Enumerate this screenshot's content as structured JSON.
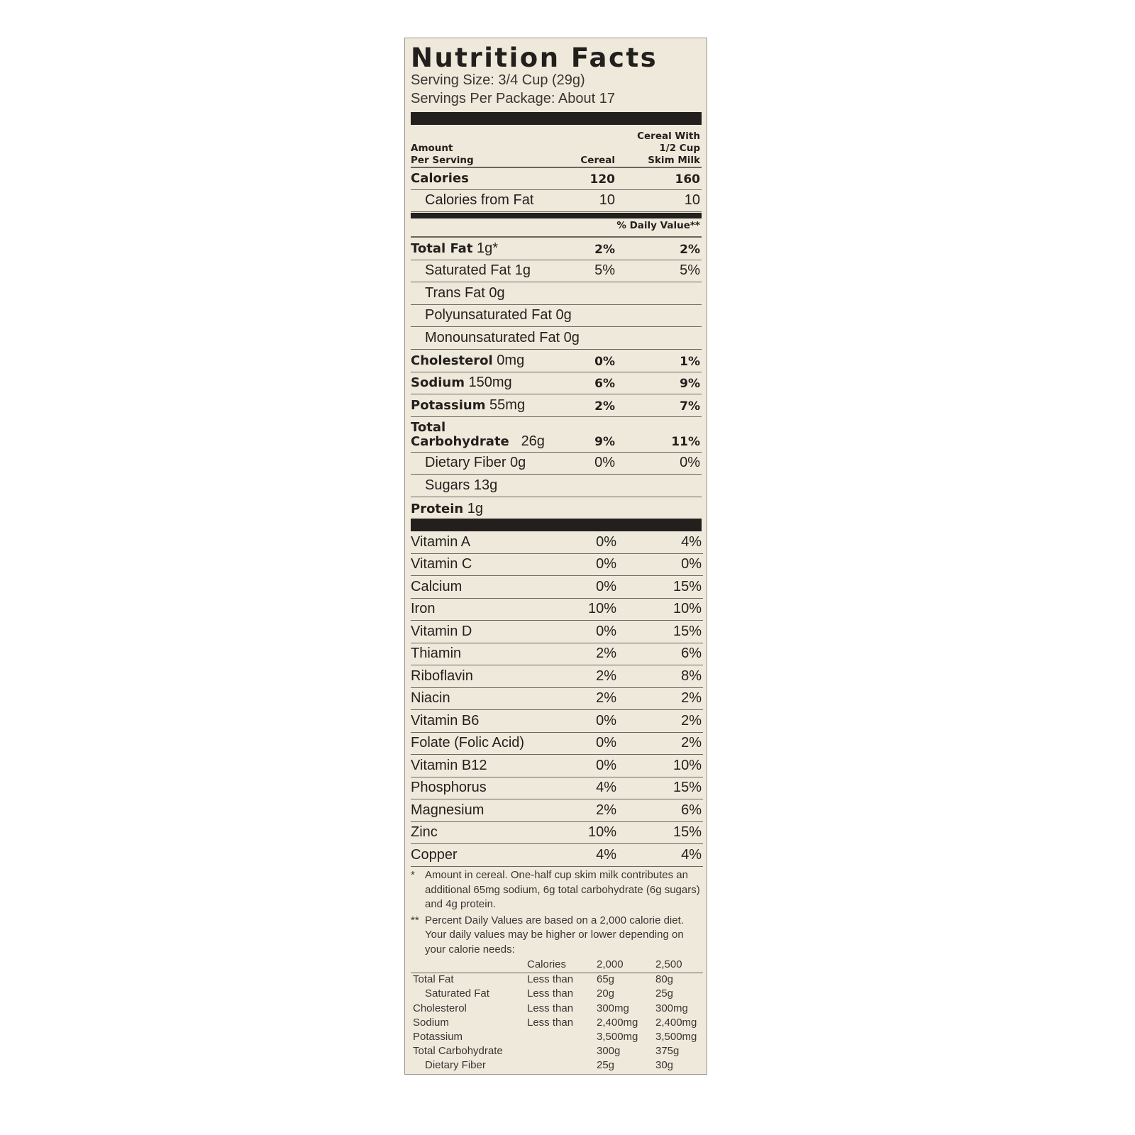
{
  "title": "Nutrition Facts",
  "serving_size": "Serving Size: 3/4 Cup (29g)",
  "servings_per_package": "Servings Per Package: About 17",
  "header": {
    "amount_line1": "Amount",
    "amount_line2": "Per Serving",
    "col1": "Cereal",
    "col2_line1": "Cereal With",
    "col2_line2": "1/2 Cup",
    "col2_line3": "Skim Milk"
  },
  "calories": [
    {
      "label": "Calories",
      "cereal": "120",
      "with_milk": "160",
      "bold": true,
      "indent": false
    },
    {
      "label": "Calories from Fat",
      "cereal": "10",
      "with_milk": "10",
      "bold": false,
      "indent": true
    }
  ],
  "daily_value_header": "% Daily Value**",
  "nutrients": [
    {
      "name": "Total Fat",
      "amount": "1g*",
      "cereal": "2%",
      "with_milk": "2%",
      "bold": true,
      "indent": false
    },
    {
      "name": "Saturated Fat 1g",
      "amount": "",
      "cereal": "5%",
      "with_milk": "5%",
      "bold": false,
      "indent": true
    },
    {
      "name": "Trans Fat 0g",
      "amount": "",
      "cereal": "",
      "with_milk": "",
      "bold": false,
      "indent": true
    },
    {
      "name": "Polyunsaturated Fat 0g",
      "amount": "",
      "cereal": "",
      "with_milk": "",
      "bold": false,
      "indent": true
    },
    {
      "name": "Monounsaturated Fat 0g",
      "amount": "",
      "cereal": "",
      "with_milk": "",
      "bold": false,
      "indent": true
    },
    {
      "name": "Cholesterol",
      "amount": "0mg",
      "cereal": "0%",
      "with_milk": "1%",
      "bold": true,
      "indent": false
    },
    {
      "name": "Sodium",
      "amount": "150mg",
      "cereal": "6%",
      "with_milk": "9%",
      "bold": true,
      "indent": false
    },
    {
      "name": "Potassium",
      "amount": "55mg",
      "cereal": "2%",
      "with_milk": "7%",
      "bold": true,
      "indent": false
    },
    {
      "name": "Total Carbohydrate",
      "amount": "26g",
      "cereal": "9%",
      "with_milk": "11%",
      "bold": true,
      "indent": false
    },
    {
      "name": "Dietary Fiber 0g",
      "amount": "",
      "cereal": "0%",
      "with_milk": "0%",
      "bold": false,
      "indent": true
    },
    {
      "name": "Sugars 13g",
      "amount": "",
      "cereal": "",
      "with_milk": "",
      "bold": false,
      "indent": true
    },
    {
      "name": "Protein",
      "amount": "1g",
      "cereal": "",
      "with_milk": "",
      "bold": true,
      "indent": false
    }
  ],
  "vitamins": [
    {
      "name": "Vitamin A",
      "cereal": "0%",
      "with_milk": "4%"
    },
    {
      "name": "Vitamin C",
      "cereal": "0%",
      "with_milk": "0%"
    },
    {
      "name": "Calcium",
      "cereal": "0%",
      "with_milk": "15%"
    },
    {
      "name": "Iron",
      "cereal": "10%",
      "with_milk": "10%"
    },
    {
      "name": "Vitamin D",
      "cereal": "0%",
      "with_milk": "15%"
    },
    {
      "name": "Thiamin",
      "cereal": "2%",
      "with_milk": "6%"
    },
    {
      "name": "Riboflavin",
      "cereal": "2%",
      "with_milk": "8%"
    },
    {
      "name": "Niacin",
      "cereal": "2%",
      "with_milk": "2%"
    },
    {
      "name": "Vitamin B6",
      "cereal": "0%",
      "with_milk": "2%"
    },
    {
      "name": "Folate (Folic Acid)",
      "cereal": "0%",
      "with_milk": "2%"
    },
    {
      "name": "Vitamin B12",
      "cereal": "0%",
      "with_milk": "10%"
    },
    {
      "name": "Phosphorus",
      "cereal": "4%",
      "with_milk": "15%"
    },
    {
      "name": "Magnesium",
      "cereal": "2%",
      "with_milk": "6%"
    },
    {
      "name": "Zinc",
      "cereal": "10%",
      "with_milk": "15%"
    },
    {
      "name": "Copper",
      "cereal": "4%",
      "with_milk": "4%"
    }
  ],
  "footnotes": [
    {
      "marker": "*",
      "text": "Amount in cereal. One-half cup skim milk contributes an additional 65mg sodium, 6g total carbohydrate (6g sugars) and 4g protein."
    },
    {
      "marker": "**",
      "text": "Percent Daily Values are based on a 2,000 calorie diet. Your daily values may be higher or lower depending on your calorie needs:"
    }
  ],
  "daily_table": {
    "header": [
      "",
      "Calories",
      "2,000",
      "2,500"
    ],
    "rows": [
      [
        "Total Fat",
        "Less than",
        "65g",
        "80g"
      ],
      [
        "Saturated Fat",
        "Less than",
        "20g",
        "25g"
      ],
      [
        "Cholesterol",
        "Less than",
        "300mg",
        "300mg"
      ],
      [
        "Sodium",
        "Less than",
        "2,400mg",
        "2,400mg"
      ],
      [
        "Potassium",
        "",
        "3,500mg",
        "3,500mg"
      ],
      [
        "Total Carbohydrate",
        "",
        "300g",
        "375g"
      ],
      [
        "Dietary Fiber",
        "",
        "25g",
        "30g"
      ]
    ]
  },
  "colors": {
    "background": "#efe9dc",
    "text": "#231f1c"
  }
}
